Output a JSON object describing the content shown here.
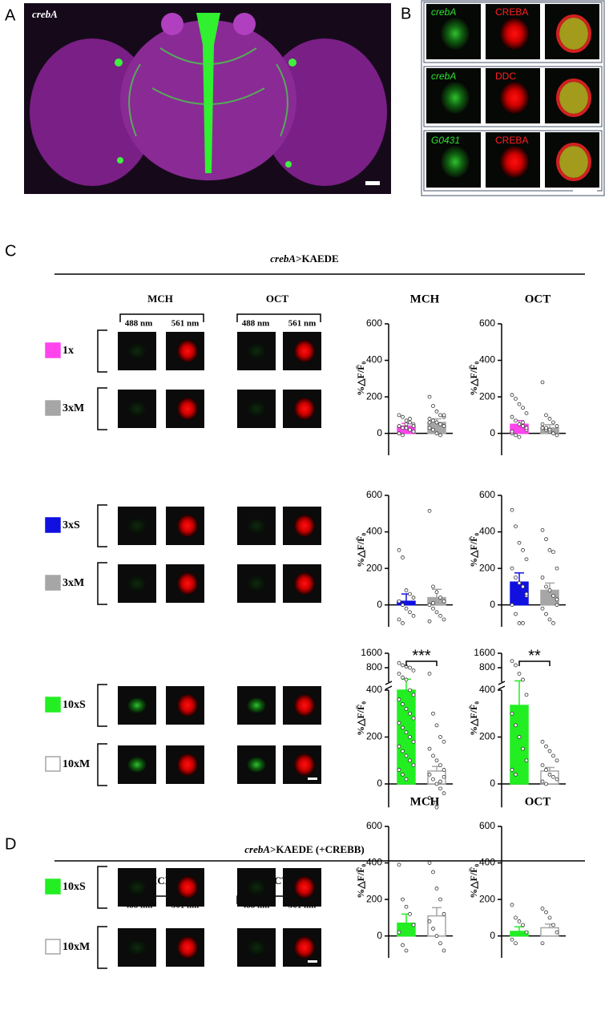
{
  "panel_a": {
    "letter": "A",
    "label": "crebA"
  },
  "panel_b": {
    "letter": "B",
    "rows": [
      {
        "left": "crebA",
        "right": "CREBA"
      },
      {
        "left": "crebA",
        "right": "DDC"
      },
      {
        "left": "G0431",
        "right": "CREBA"
      }
    ]
  },
  "panel_c": {
    "letter": "C",
    "gene": "crebA",
    "title": ">KAEDE"
  },
  "panel_d": {
    "letter": "D",
    "gene": "crebA",
    "title": ">KAEDE (+CREBB)"
  },
  "image_headers": {
    "odors": [
      "MCH",
      "OCT"
    ],
    "channels": [
      "488 nm",
      "561 nm"
    ]
  },
  "chart_data": [
    {
      "type": "bar",
      "title": "MCH",
      "ylabel": "%△F/F̄₀",
      "ylim": [
        -120,
        600
      ],
      "yticks": [
        0,
        200,
        400,
        600
      ],
      "series": [
        {
          "name": "1x",
          "color": "#ff44ee",
          "edgecolor": "#ff44ee",
          "values": [
            40
          ],
          "errors": [
            15
          ],
          "points": [
            100,
            90,
            70,
            60,
            50,
            40,
            30,
            30,
            20,
            10,
            0,
            -10,
            50,
            80,
            40
          ]
        },
        {
          "name": "3xM",
          "color": "#a6a6a6",
          "edgecolor": "#a6a6a6",
          "values": [
            60
          ],
          "errors": [
            20
          ],
          "points": [
            200,
            150,
            120,
            100,
            90,
            80,
            70,
            60,
            50,
            40,
            30,
            20,
            0,
            -10,
            100,
            60
          ]
        }
      ]
    },
    {
      "type": "bar",
      "title": "OCT",
      "ylabel": "%△F/F̄₀",
      "ylim": [
        -120,
        600
      ],
      "yticks": [
        0,
        200,
        400,
        600
      ],
      "series": [
        {
          "color": "#ff44ee",
          "edgecolor": "#ff44ee",
          "values": [
            50
          ],
          "errors": [
            20
          ],
          "points": [
            210,
            190,
            160,
            140,
            110,
            90,
            70,
            50,
            40,
            20,
            0,
            -10,
            -20,
            60,
            30,
            10
          ]
        },
        {
          "color": "#a6a6a6",
          "edgecolor": "#a6a6a6",
          "values": [
            30
          ],
          "errors": [
            18
          ],
          "points": [
            280,
            100,
            80,
            60,
            40,
            30,
            20,
            10,
            0,
            -10,
            50,
            30,
            20
          ]
        }
      ]
    },
    {
      "type": "bar",
      "ylabel": "%△F/F̄₀",
      "ylim": [
        -120,
        600
      ],
      "yticks": [
        0,
        200,
        400,
        600
      ],
      "series": [
        {
          "name": "3xS",
          "color": "#1010e0",
          "edgecolor": "#1010e0",
          "values": [
            20
          ],
          "errors": [
            40
          ],
          "points": [
            300,
            260,
            80,
            60,
            40,
            20,
            0,
            -20,
            -40,
            -60,
            -80,
            -100
          ]
        },
        {
          "name": "3xM",
          "color": "#a6a6a6",
          "edgecolor": "#a6a6a6",
          "values": [
            40
          ],
          "errors": [
            45
          ],
          "points": [
            515,
            100,
            70,
            40,
            20,
            0,
            -20,
            -40,
            -60,
            -80,
            -90,
            10
          ]
        }
      ]
    },
    {
      "type": "bar",
      "ylabel": "%△F/F̄₀",
      "ylim": [
        -120,
        600
      ],
      "yticks": [
        0,
        200,
        400,
        600
      ],
      "series": [
        {
          "color": "#1010e0",
          "edgecolor": "#1010e0",
          "values": [
            125
          ],
          "errors": [
            50
          ],
          "points": [
            520,
            430,
            340,
            300,
            250,
            200,
            150,
            120,
            100,
            50,
            0,
            -50,
            -100,
            -100,
            60
          ]
        },
        {
          "color": "#a6a6a6",
          "edgecolor": "#a6a6a6",
          "values": [
            80
          ],
          "errors": [
            40
          ],
          "points": [
            410,
            360,
            300,
            290,
            200,
            150,
            100,
            80,
            50,
            0,
            -20,
            -50,
            -80,
            -100,
            30
          ]
        }
      ]
    },
    {
      "type": "bar",
      "ylabel": "%△F/F̄₀",
      "ylim": [
        -100,
        1600
      ],
      "axis_break": 400,
      "yticks": [
        0,
        200,
        400,
        800,
        1600
      ],
      "annotation": "***",
      "series": [
        {
          "name": "10xS",
          "color": "#22ee22",
          "edgecolor": "#22ee22",
          "values": [
            400
          ],
          "errors": [
            60
          ],
          "points": [
            1000,
            900,
            850,
            800,
            700,
            600,
            500,
            450,
            400,
            380,
            360,
            340,
            320,
            300,
            280,
            260,
            240,
            220,
            200,
            180,
            160,
            140,
            120,
            100,
            80,
            60,
            40,
            20
          ]
        },
        {
          "name": "10xM",
          "color": "#ffffff",
          "edgecolor": "#a6a6a6",
          "values": [
            55
          ],
          "errors": [
            20
          ],
          "points": [
            600,
            300,
            250,
            200,
            180,
            150,
            120,
            100,
            80,
            60,
            40,
            20,
            0,
            -20,
            -40,
            -60,
            -80,
            -100,
            10,
            30
          ]
        }
      ]
    },
    {
      "type": "bar",
      "ylabel": "%△F/F̄₀",
      "ylim": [
        -100,
        1600
      ],
      "axis_break": 400,
      "yticks": [
        0,
        200,
        400,
        800,
        1600
      ],
      "annotation": "**",
      "series": [
        {
          "color": "#22ee22",
          "edgecolor": "#22ee22",
          "values": [
            335
          ],
          "errors": [
            90
          ],
          "points": [
            1100,
            900,
            600,
            450,
            380,
            300,
            250,
            200,
            150,
            100,
            60,
            40
          ]
        },
        {
          "color": "#ffffff",
          "edgecolor": "#a6a6a6",
          "values": [
            55
          ],
          "errors": [
            15
          ],
          "points": [
            180,
            160,
            140,
            120,
            100,
            80,
            60,
            40,
            30,
            20,
            10,
            0
          ]
        }
      ]
    },
    {
      "type": "bar",
      "title": "MCH",
      "ylabel": "%△F/F̄₀",
      "ylim": [
        -120,
        600
      ],
      "yticks": [
        0,
        200,
        400,
        600
      ],
      "series": [
        {
          "name": "10xS",
          "color": "#22ee22",
          "edgecolor": "#22ee22",
          "values": [
            70
          ],
          "errors": [
            50
          ],
          "points": [
            390,
            200,
            160,
            120,
            60,
            20,
            -50,
            -80
          ]
        },
        {
          "name": "10xM",
          "color": "#ffffff",
          "edgecolor": "#a6a6a6",
          "values": [
            110
          ],
          "errors": [
            45
          ],
          "points": [
            400,
            350,
            260,
            200,
            120,
            80,
            40,
            0,
            -40,
            -80
          ]
        }
      ]
    },
    {
      "type": "bar",
      "title": "OCT",
      "ylabel": "%△F/F̄₀",
      "ylim": [
        -120,
        600
      ],
      "yticks": [
        0,
        200,
        400,
        600
      ],
      "series": [
        {
          "color": "#22ee22",
          "edgecolor": "#22ee22",
          "values": [
            25
          ],
          "errors": [
            25
          ],
          "points": [
            170,
            100,
            80,
            60,
            20,
            -20,
            -40
          ]
        },
        {
          "color": "#ffffff",
          "edgecolor": "#a6a6a6",
          "values": [
            45
          ],
          "errors": [
            20
          ],
          "points": [
            150,
            130,
            100,
            60,
            20,
            -40
          ]
        }
      ]
    }
  ]
}
